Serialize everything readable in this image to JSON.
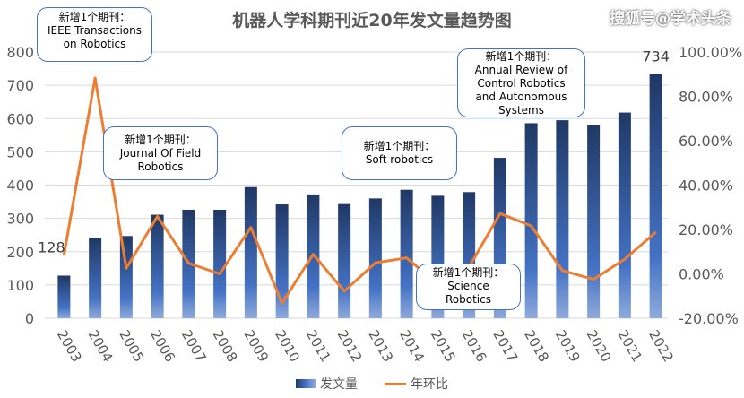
{
  "watermark": "搜狐号@学术头条",
  "chart_data": {
    "type": "bar+line",
    "title": "机器人学科期刊近20年发文量趋势图",
    "categories": [
      "2003",
      "2004",
      "2005",
      "2006",
      "2007",
      "2008",
      "2009",
      "2010",
      "2011",
      "2012",
      "2013",
      "2014",
      "2015",
      "2016",
      "2017",
      "2018",
      "2019",
      "2020",
      "2021",
      "2022"
    ],
    "series": [
      {
        "name": "发文量",
        "type": "bar",
        "axis": "left",
        "color": "#2f5597",
        "values": [
          128,
          241,
          247,
          311,
          326,
          326,
          394,
          342,
          372,
          343,
          360,
          386,
          368,
          379,
          482,
          586,
          595,
          580,
          618,
          734
        ]
      },
      {
        "name": "年环比",
        "type": "line",
        "axis": "right",
        "color": "#ed7d31",
        "values": [
          8.5,
          88.3,
          2.5,
          25.9,
          4.8,
          0.0,
          20.9,
          -13.2,
          8.8,
          -7.8,
          5.0,
          7.2,
          -4.7,
          3.0,
          27.2,
          21.6,
          1.5,
          -2.5,
          6.6,
          18.8
        ]
      }
    ],
    "data_labels": [
      {
        "index": 0,
        "text": "128"
      },
      {
        "index": 19,
        "text": "734"
      }
    ],
    "yleft": {
      "ylim": [
        0,
        800
      ],
      "ticks": [
        "0",
        "100",
        "200",
        "300",
        "400",
        "500",
        "600",
        "700",
        "800"
      ]
    },
    "yright": {
      "ylim": [
        -20,
        100
      ],
      "ticks": [
        "-20.00%",
        "0.00%",
        "20.00%",
        "40.00%",
        "60.00%",
        "80.00%",
        "100.00%"
      ]
    },
    "grid": true,
    "legend": "bottom",
    "annotations": [
      {
        "line1": "新增1个期刊：",
        "line2": "IEEE Transactions",
        "line3": "on Robotics"
      },
      {
        "line1": "新增1个期刊：",
        "line2": "Journal Of Field",
        "line3": "Robotics"
      },
      {
        "line1": "新增1个期刊：",
        "line2": "Soft robotics"
      },
      {
        "line1": "新增1个期刊：",
        "line2": "Annual Review of",
        "line3": "Control Robotics",
        "line4": "and Autonomous",
        "line5": "Systems"
      },
      {
        "line1": "新增1个期刊：",
        "line2": "Science",
        "line3": "Robotics"
      }
    ]
  }
}
